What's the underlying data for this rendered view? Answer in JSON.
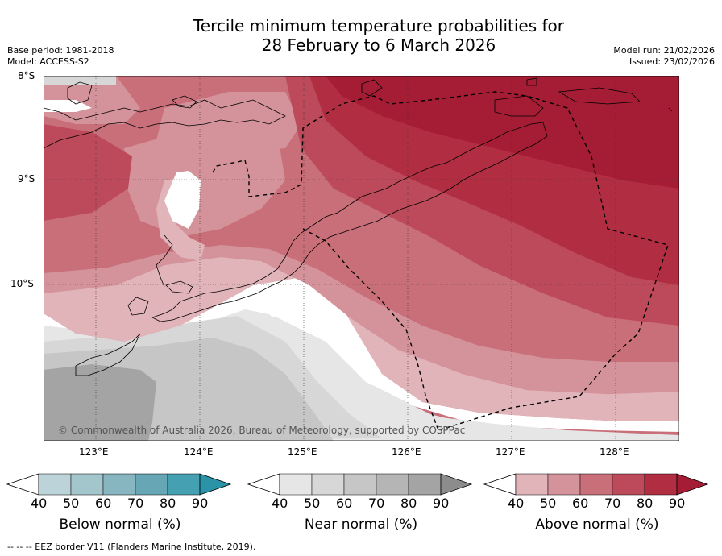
{
  "title": {
    "line1": "Tercile minimum temperature probabilities for",
    "line2": "28 February to 6 March 2026"
  },
  "meta": {
    "base_period": "Base period: 1981-2018",
    "model": "Model: ACCESS-S2",
    "model_run": "Model run: 21/02/2026",
    "issued": "Issued: 23/02/2026"
  },
  "map": {
    "lat_labels": [
      "8°S",
      "9°S",
      "10°S"
    ],
    "lon_labels": [
      "123°E",
      "124°E",
      "125°E",
      "126°E",
      "127°E",
      "128°E"
    ],
    "copyright": "© Commonwealth of Australia 2026, Bureau of Meteorology, supported by COSPPac",
    "lat_range": [
      -11.5,
      -8.0
    ],
    "lon_range": [
      122.7,
      128.6
    ]
  },
  "colors": {
    "below": [
      "#bcd3da",
      "#a3c6cc",
      "#87b6c0",
      "#67a6b4",
      "#45a0b2",
      "#2a93a8"
    ],
    "near": [
      "#e6e6e6",
      "#d7d7d7",
      "#c6c6c6",
      "#b5b5b5",
      "#a4a4a4",
      "#8c8c8c"
    ],
    "above": [
      "#e1b4ba",
      "#d4939b",
      "#c96f7a",
      "#bc4a5a",
      "#b12d42",
      "#a51d35"
    ]
  },
  "colorbars": [
    {
      "name": "below",
      "title": "Below normal (%)",
      "ticks": [
        "40",
        "50",
        "60",
        "70",
        "80",
        "90"
      ]
    },
    {
      "name": "near",
      "title": "Near normal (%)",
      "ticks": [
        "40",
        "50",
        "60",
        "70",
        "80",
        "90"
      ]
    },
    {
      "name": "above",
      "title": "Above normal (%)",
      "ticks": [
        "40",
        "50",
        "60",
        "70",
        "80",
        "90"
      ]
    }
  ],
  "footer": "--  --  -- EEZ border V11 (Flanders Marine Institute, 2019)."
}
